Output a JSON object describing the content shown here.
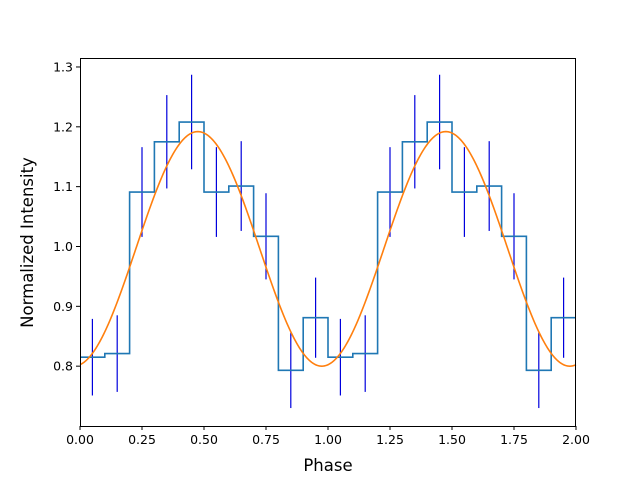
{
  "chart_data": {
    "type": "line",
    "title": "",
    "xlabel": "Phase",
    "ylabel": "Normalized Intensity",
    "xlim": [
      0.0,
      2.0
    ],
    "ylim": [
      0.7,
      1.315
    ],
    "x_ticks": [
      "0.00",
      "0.25",
      "0.50",
      "0.75",
      "1.00",
      "1.25",
      "1.50",
      "1.75",
      "2.00"
    ],
    "y_ticks": [
      "0.8",
      "0.9",
      "1.0",
      "1.1",
      "1.2",
      "1.3"
    ],
    "grid": false,
    "legend": "none",
    "colors": {
      "histogram": "#1f77b4",
      "errorbars": "#0000dd",
      "fit": "#ff7f0e"
    },
    "series": [
      {
        "kind": "step-histogram",
        "bin_edges": [
          0.0,
          0.1,
          0.2,
          0.3,
          0.4,
          0.5,
          0.6,
          0.7,
          0.8,
          0.9,
          1.0,
          1.1,
          1.2,
          1.3,
          1.4,
          1.5,
          1.6,
          1.7,
          1.8,
          1.9,
          2.0
        ],
        "values": [
          0.815,
          0.821,
          1.091,
          1.175,
          1.208,
          1.091,
          1.101,
          1.017,
          0.793,
          0.881,
          0.815,
          0.821,
          1.091,
          1.175,
          1.208,
          1.091,
          1.101,
          1.017,
          0.793,
          0.881
        ]
      },
      {
        "kind": "errorbars",
        "x": [
          0.05,
          0.15,
          0.25,
          0.35,
          0.45,
          0.55,
          0.65,
          0.75,
          0.85,
          0.95,
          1.05,
          1.15,
          1.25,
          1.35,
          1.45,
          1.55,
          1.65,
          1.75,
          1.85,
          1.95
        ],
        "y": [
          0.815,
          0.821,
          1.091,
          1.175,
          1.208,
          1.091,
          1.101,
          1.017,
          0.793,
          0.881,
          0.815,
          0.821,
          1.091,
          1.175,
          1.208,
          1.091,
          1.101,
          1.017,
          0.793,
          0.881
        ],
        "err": [
          0.064,
          0.064,
          0.075,
          0.078,
          0.079,
          0.075,
          0.075,
          0.072,
          0.063,
          0.067,
          0.064,
          0.064,
          0.075,
          0.078,
          0.079,
          0.075,
          0.075,
          0.072,
          0.063,
          0.067
        ]
      },
      {
        "kind": "sinusoid-fit",
        "offset": 0.996,
        "amplitude": 0.196,
        "peak_phase": 0.475
      }
    ]
  }
}
